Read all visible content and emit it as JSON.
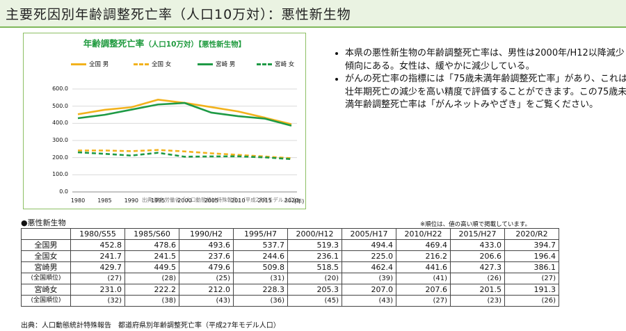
{
  "page": {
    "title": "主要死因別年齢調整死亡率（人口10万対）：悪性新生物"
  },
  "chart_data": {
    "type": "line",
    "title": "年齢調整死亡率",
    "title_suffix": "（人口10万対）【悪性新生物】",
    "x": [
      1980,
      1985,
      1990,
      1995,
      2000,
      2005,
      2010,
      2015,
      2020
    ],
    "xlabel": "(年)",
    "ylim": [
      0,
      600
    ],
    "yticks": [
      "0.0",
      "100.0",
      "200.0",
      "300.0",
      "400.0",
      "500.0",
      "600.0"
    ],
    "grid": true,
    "legend_position": "top",
    "series": [
      {
        "name": "全国 男",
        "color": "#f2b21c",
        "dash": false,
        "values": [
          452.8,
          478.6,
          493.6,
          537.7,
          519.3,
          494.4,
          469.4,
          433.0,
          394.7
        ]
      },
      {
        "name": "全国 女",
        "color": "#f2b21c",
        "dash": true,
        "values": [
          241.7,
          241.5,
          237.6,
          244.6,
          236.1,
          225.0,
          216.2,
          206.6,
          196.4
        ]
      },
      {
        "name": "宮崎 男",
        "color": "#1e9a45",
        "dash": false,
        "values": [
          429.7,
          449.5,
          479.6,
          509.8,
          518.5,
          462.4,
          441.6,
          427.3,
          386.1
        ]
      },
      {
        "name": "宮崎 女",
        "color": "#1e9a45",
        "dash": true,
        "values": [
          231.0,
          222.2,
          212.0,
          228.3,
          205.3,
          207.0,
          207.6,
          201.5,
          191.3
        ]
      }
    ],
    "source": "出典:厚生労働省「人口動態統計特殊報告」（平成27年モデル人口）"
  },
  "bullets": [
    "本県の悪性新生物の年齢調整死亡率は、男性は2000年/H12以降減少傾向にある。女性は、緩やかに減少している。",
    "がんの死亡率の指標には「75歳未満年齢調整死亡率」があり、これは壮年期死亡の減少を高い精度で評価することができます。この75歳未満年齢調整死亡率は「がんネットみやざき」をご覧ください。"
  ],
  "table": {
    "caption": "●悪性新生物",
    "note": "※順位は、値の高い順で掲載しています。",
    "headers": [
      "1980/S55",
      "1985/S60",
      "1990/H2",
      "1995/H7",
      "2000/H12",
      "2005/H17",
      "2010/H22",
      "2015/H27",
      "2020/R2"
    ],
    "rows": [
      {
        "label": "全国男",
        "values": [
          "452.8",
          "478.6",
          "493.6",
          "537.7",
          "519.3",
          "494.4",
          "469.4",
          "433.0",
          "394.7"
        ]
      },
      {
        "label": "全国女",
        "values": [
          "241.7",
          "241.5",
          "237.6",
          "244.6",
          "236.1",
          "225.0",
          "216.2",
          "206.6",
          "196.4"
        ]
      },
      {
        "label": "宮崎男",
        "values": [
          "429.7",
          "449.5",
          "479.6",
          "509.8",
          "518.5",
          "462.4",
          "441.6",
          "427.3",
          "386.1"
        ]
      },
      {
        "label": "(全国順位)",
        "rank": true,
        "values": [
          "(27)",
          "(28)",
          "(25)",
          "(31)",
          "(20)",
          "(39)",
          "(41)",
          "(26)",
          "(27)"
        ]
      },
      {
        "label": "宮崎女",
        "values": [
          "231.0",
          "222.2",
          "212.0",
          "228.3",
          "205.3",
          "207.0",
          "207.6",
          "201.5",
          "191.3"
        ]
      },
      {
        "label": "(全国順位)",
        "rank": true,
        "values": [
          "(32)",
          "(38)",
          "(43)",
          "(36)",
          "(45)",
          "(43)",
          "(27)",
          "(23)",
          "(26)"
        ]
      }
    ],
    "source": "出典：人口動態統計特殊報告　都道府県別年齢調整死亡率（平成27年モデル人口）"
  }
}
